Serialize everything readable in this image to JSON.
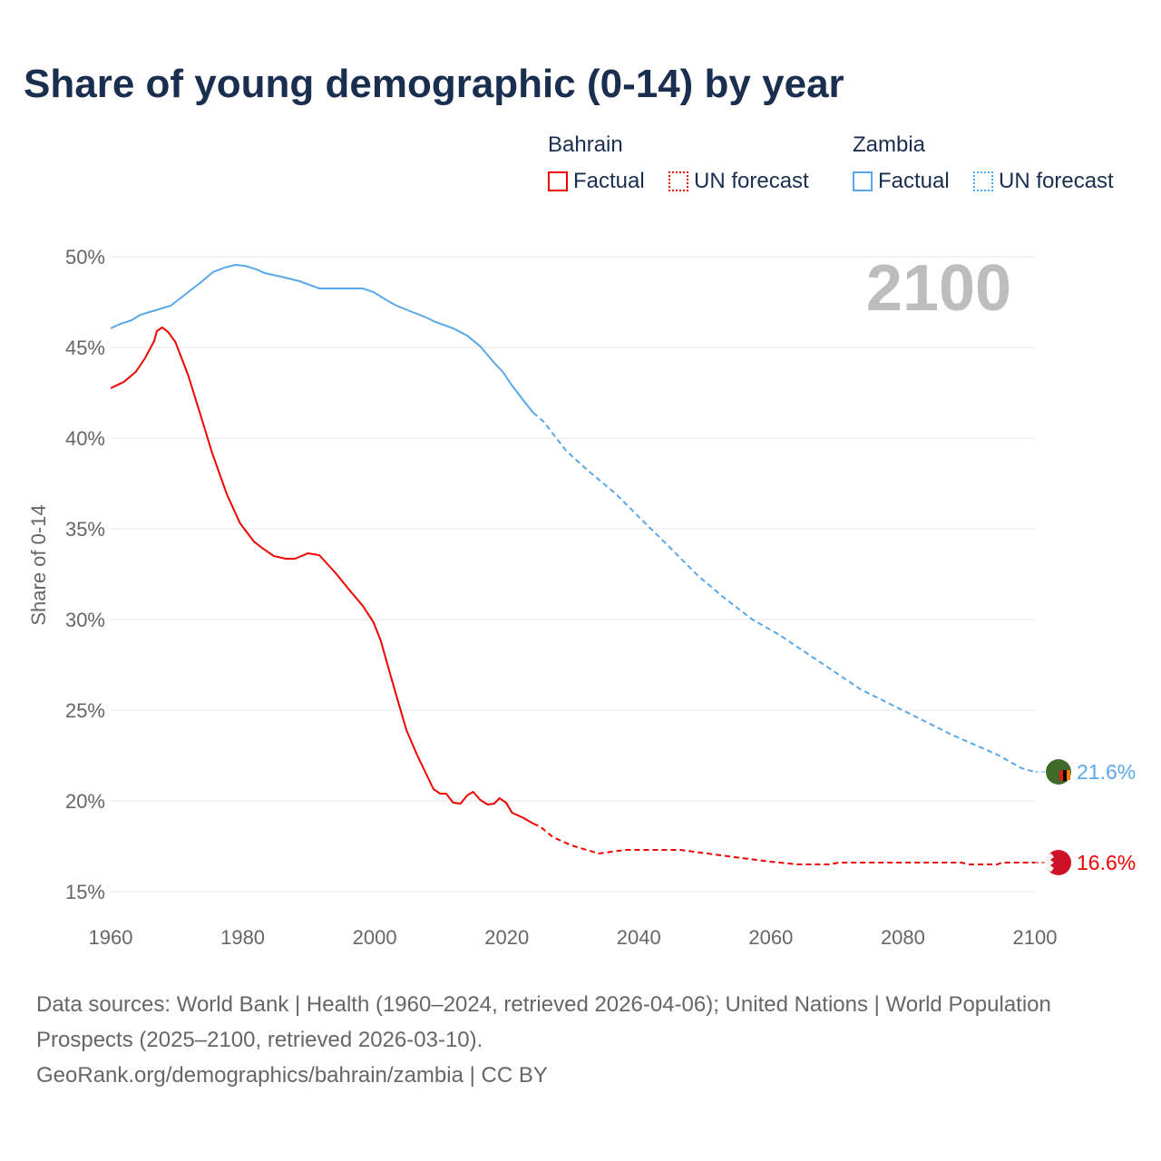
{
  "title": "Share of young demographic (0-14) by year",
  "legend": {
    "groups": [
      {
        "name": "Bahrain",
        "color": "#ee0000",
        "items": [
          "Factual",
          "UN forecast"
        ]
      },
      {
        "name": "Zambia",
        "color": "#5aa7ea",
        "items": [
          "Factual",
          "UN forecast"
        ]
      }
    ]
  },
  "source": {
    "line1": "Data sources: World Bank | Health (1960–2024, retrieved 2026-04-06); United Nations | World Population Prospects (2025–2100, retrieved 2026-03-10).",
    "line2": "GeoRank.org/demographics/bahrain/zambia | CC BY"
  },
  "chart_data": {
    "type": "line",
    "title": "Share of young demographic (0-14) by year",
    "ylabel": "Share of 0-14",
    "xlabel": "",
    "xlim": [
      1960,
      2100
    ],
    "ylim": [
      15,
      50
    ],
    "x_ticks": [
      "1960",
      "1980",
      "2000",
      "2020",
      "2040",
      "2060",
      "2080",
      "2100"
    ],
    "y_ticks": [
      "15%",
      "20%",
      "25%",
      "30%",
      "35%",
      "40%",
      "45%",
      "50%"
    ],
    "year_label": "2100",
    "series": [
      {
        "name": "Bahrain",
        "color": "#ee0000",
        "end_label": "16.6%",
        "factual": [
          [
            1960,
            42.75
          ],
          [
            1962,
            43.1
          ],
          [
            1963.8,
            43.65
          ],
          [
            1965.2,
            44.4
          ],
          [
            1966.6,
            45.35
          ],
          [
            1967,
            45.9
          ],
          [
            1967.8,
            46.1
          ],
          [
            1968.7,
            45.85
          ],
          [
            1969.8,
            45.3
          ],
          [
            1971.7,
            43.5
          ],
          [
            1973.5,
            41.4
          ],
          [
            1975.4,
            39.15
          ],
          [
            1977.6,
            36.9
          ],
          [
            1979.6,
            35.3
          ],
          [
            1981.7,
            34.3
          ],
          [
            1983.1,
            33.9
          ],
          [
            1984.7,
            33.5
          ],
          [
            1986.5,
            33.35
          ],
          [
            1987.9,
            33.35
          ],
          [
            1989.9,
            33.65
          ],
          [
            1991.6,
            33.55
          ],
          [
            1994.1,
            32.55
          ],
          [
            1996.1,
            31.65
          ],
          [
            1998.2,
            30.75
          ],
          [
            1999.8,
            29.85
          ],
          [
            2000.9,
            28.85
          ],
          [
            2002.6,
            26.65
          ],
          [
            2004.8,
            23.9
          ],
          [
            2006.4,
            22.55
          ],
          [
            2008.9,
            20.65
          ],
          [
            2009.9,
            20.4
          ],
          [
            2010.8,
            20.4
          ],
          [
            2011.9,
            19.9
          ],
          [
            2013,
            19.85
          ],
          [
            2014,
            20.3
          ],
          [
            2014.9,
            20.5
          ],
          [
            2016,
            20.05
          ],
          [
            2017.1,
            19.8
          ],
          [
            2018.1,
            19.85
          ],
          [
            2018.9,
            20.15
          ],
          [
            2019.9,
            19.9
          ],
          [
            2020.8,
            19.35
          ],
          [
            2022.6,
            19.05
          ],
          [
            2024,
            18.75
          ]
        ],
        "forecast": [
          [
            2024,
            18.75
          ],
          [
            2025,
            18.6
          ],
          [
            2027,
            18.0
          ],
          [
            2029.8,
            17.55
          ],
          [
            2033.9,
            17.1
          ],
          [
            2038,
            17.3
          ],
          [
            2046.3,
            17.3
          ],
          [
            2050.4,
            17.1
          ],
          [
            2054.5,
            16.9
          ],
          [
            2060,
            16.65
          ],
          [
            2064.1,
            16.5
          ],
          [
            2068.9,
            16.5
          ],
          [
            2070.3,
            16.6
          ],
          [
            2088.8,
            16.6
          ],
          [
            2090.2,
            16.5
          ],
          [
            2094.3,
            16.5
          ],
          [
            2095,
            16.6
          ],
          [
            2100,
            16.6
          ]
        ]
      },
      {
        "name": "Zambia",
        "color": "#5aa7ea",
        "end_label": "21.6%",
        "factual": [
          [
            1960,
            46.05
          ],
          [
            1961.5,
            46.3
          ],
          [
            1963.2,
            46.5
          ],
          [
            1964.5,
            46.8
          ],
          [
            1965.9,
            46.95
          ],
          [
            1967.3,
            47.1
          ],
          [
            1969.1,
            47.3
          ],
          [
            1970.7,
            47.75
          ],
          [
            1972.1,
            48.15
          ],
          [
            1973.7,
            48.6
          ],
          [
            1975.5,
            49.15
          ],
          [
            1977.3,
            49.4
          ],
          [
            1978.9,
            49.55
          ],
          [
            1980.3,
            49.5
          ],
          [
            1982.1,
            49.3
          ],
          [
            1983.3,
            49.1
          ],
          [
            1985.8,
            48.9
          ],
          [
            1988.6,
            48.65
          ],
          [
            1991.6,
            48.25
          ],
          [
            1998.2,
            48.25
          ],
          [
            1999.8,
            48.05
          ],
          [
            2001.6,
            47.65
          ],
          [
            2003,
            47.35
          ],
          [
            2005,
            47.05
          ],
          [
            2007.8,
            46.65
          ],
          [
            2009.2,
            46.4
          ],
          [
            2011.9,
            46.05
          ],
          [
            2014,
            45.65
          ],
          [
            2016,
            45.05
          ],
          [
            2018.1,
            44.15
          ],
          [
            2019.4,
            43.65
          ],
          [
            2020.8,
            42.9
          ],
          [
            2022.6,
            42.05
          ],
          [
            2024,
            41.4
          ]
        ],
        "forecast": [
          [
            2024,
            41.4
          ],
          [
            2025.6,
            40.9
          ],
          [
            2029,
            39.3
          ],
          [
            2032.5,
            38.15
          ],
          [
            2036.6,
            36.9
          ],
          [
            2040.7,
            35.4
          ],
          [
            2044.9,
            33.9
          ],
          [
            2049,
            32.4
          ],
          [
            2053.1,
            31.15
          ],
          [
            2057.2,
            30.0
          ],
          [
            2061.3,
            29.15
          ],
          [
            2065.4,
            28.15
          ],
          [
            2069.5,
            27.15
          ],
          [
            2073.6,
            26.15
          ],
          [
            2080.5,
            24.9
          ],
          [
            2087.4,
            23.65
          ],
          [
            2094.3,
            22.55
          ],
          [
            2098,
            21.8
          ],
          [
            2100,
            21.6
          ]
        ]
      }
    ]
  }
}
